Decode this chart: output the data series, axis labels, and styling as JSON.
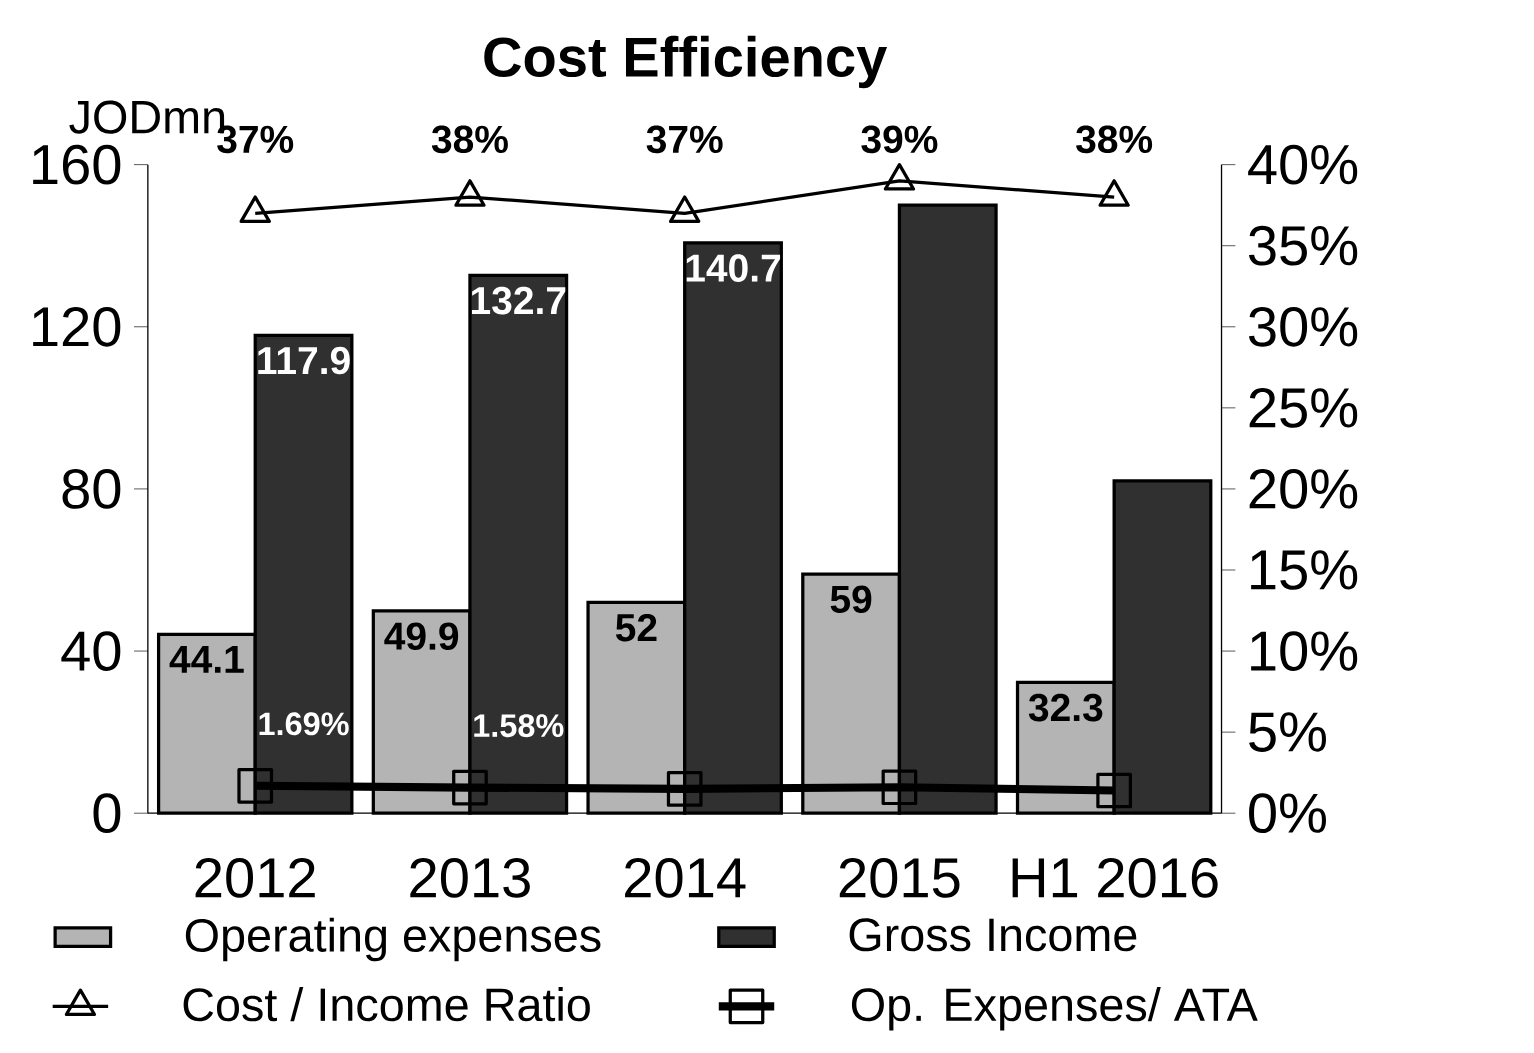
{
  "chart_data": {
    "type": "bar",
    "title": "Cost Efficiency",
    "ylabel": "JODmn",
    "categories": [
      "2012",
      "2013",
      "2014",
      "2015",
      "H1 2016"
    ],
    "series": [
      {
        "name": "Operating expenses",
        "color": "#b4b4b4",
        "values": [
          44.1,
          49.9,
          52,
          59,
          32.3
        ],
        "value_labels": [
          "44.1",
          "49.9",
          "52",
          "59",
          "32.3"
        ]
      },
      {
        "name": "Gross Income",
        "color": "#303030",
        "values": [
          117.9,
          132.7,
          140.7,
          150,
          82
        ],
        "value_labels": [
          "117.9",
          "132.7",
          "140.7",
          null,
          null
        ]
      },
      {
        "name": "Cost / Income Ratio",
        "type": "line",
        "axis": "y2",
        "color": "#000000",
        "marker": "triangle",
        "values": [
          37,
          38,
          37,
          39,
          38
        ],
        "value_labels": [
          "37%",
          "38%",
          "37%",
          "39%",
          "38%"
        ]
      },
      {
        "name": "Op. Expenses/ ATA",
        "type": "line",
        "axis": "y2",
        "color": "#000000",
        "marker": "square",
        "values": [
          1.69,
          1.58,
          1.5,
          1.6,
          1.4
        ],
        "value_labels": [
          "1.69%",
          "1.58%",
          null,
          null,
          null
        ]
      }
    ],
    "ylim": [
      0,
      160
    ],
    "yticks": [
      0,
      40,
      80,
      120,
      160
    ],
    "y2lim": [
      0,
      40
    ],
    "y2ticks": [
      {
        "value": 0,
        "label": "0%"
      },
      {
        "value": 5,
        "label": "5%"
      },
      {
        "value": 10,
        "label": "10%"
      },
      {
        "value": 15,
        "label": "15%"
      },
      {
        "value": 20,
        "label": "20%"
      },
      {
        "value": 25,
        "label": "25%"
      },
      {
        "value": 30,
        "label": "30%"
      },
      {
        "value": 35,
        "label": "35%"
      },
      {
        "value": 40,
        "label": "40%"
      }
    ],
    "legend": "bottom",
    "grid": false
  }
}
